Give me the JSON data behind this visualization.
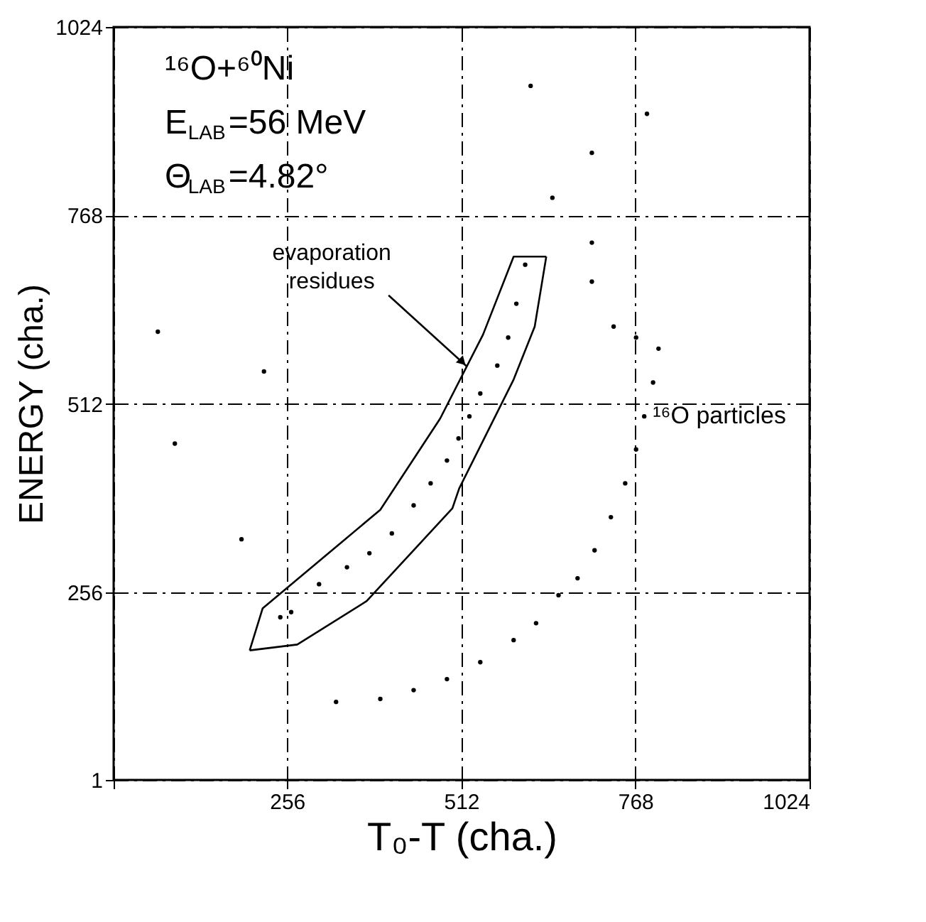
{
  "chart_data": {
    "type": "scatter",
    "xlabel": "T₀-T (cha.)",
    "ylabel": "ENERGY (cha.)",
    "xlim": [
      1,
      1024
    ],
    "ylim": [
      1,
      1024
    ],
    "xticks": [
      {
        "value": 1,
        "label": null
      },
      256,
      512,
      768,
      1024
    ],
    "yticks": [
      1,
      256,
      512,
      768,
      1024
    ],
    "grid": true,
    "marker": "circle",
    "series": [
      {
        "color": "#000000",
        "x": [
          262,
          303,
          344,
          377,
          410,
          442,
          467,
          491,
          508,
          524,
          540,
          565,
          581,
          593,
          246,
          606
        ],
        "values": [
          229,
          267,
          290,
          309,
          336,
          374,
          404,
          435,
          465,
          495,
          526,
          564,
          602,
          648,
          222,
          701
        ]
      },
      {
        "color": "#000000",
        "x": [
          802,
          794,
          781,
          769,
          753,
          732,
          708,
          683,
          655,
          622,
          589,
          540,
          491,
          442,
          393,
          328,
          704,
          704,
          736,
          769
        ],
        "values": [
          587,
          541,
          495,
          450,
          404,
          358,
          313,
          275,
          252,
          214,
          191,
          161,
          138,
          123,
          111,
          107,
          731,
          678,
          617,
          602
        ]
      },
      {
        "color": "#000000",
        "x": [
          66,
          91,
          189,
          222,
          614,
          646,
          704,
          785
        ],
        "values": [
          610,
          458,
          328,
          556,
          944,
          792,
          853,
          906
        ]
      },
      {
        "type": "line",
        "marker": "none",
        "line_style": "solid",
        "color": "#000000",
        "x": [
          201,
          220,
          393,
          481,
          544,
          589,
          637
        ],
        "values": [
          177,
          234,
          368,
          492,
          606,
          712,
          712
        ]
      },
      {
        "type": "line",
        "marker": "none",
        "line_style": "solid",
        "color": "#000000",
        "x": [
          201,
          271,
          373,
          499,
          509,
          589,
          620,
          637
        ],
        "values": [
          177,
          185,
          244,
          370,
          397,
          545,
          617,
          712
        ]
      }
    ],
    "annotations": [
      "¹⁶O+⁶⁰Ni",
      "E$_{LAB}$=56 MeV",
      "Θ$_{LAB}$=4.82°",
      {
        "text": "evaporation residues",
        "x": 520,
        "y": 563
      },
      {
        "text": "¹⁶O particles",
        "x": 781,
        "y": 495
      }
    ]
  }
}
